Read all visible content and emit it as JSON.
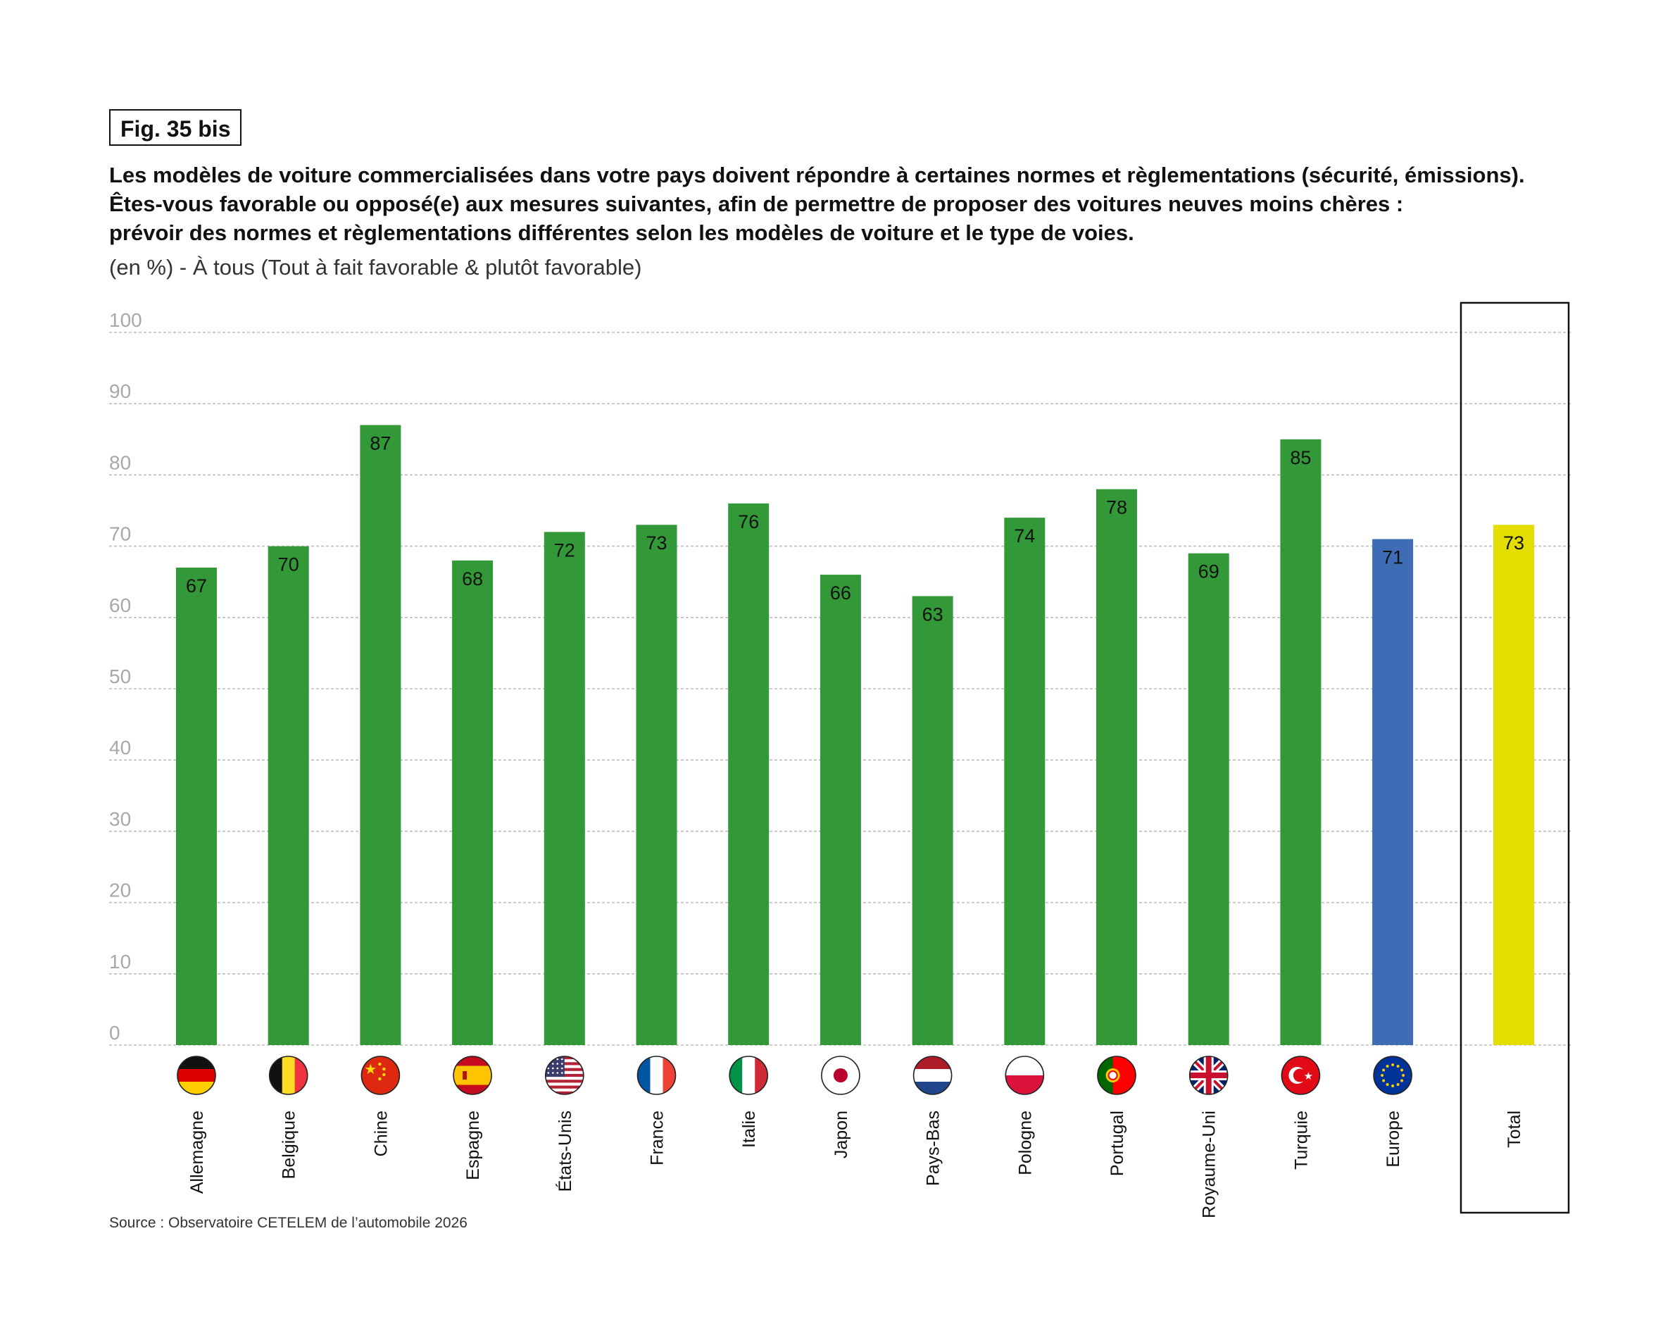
{
  "figure": {
    "label": "Fig. 35 bis",
    "title_lines": [
      "Les modèles de voiture commercialisées dans votre pays doivent répondre à certaines normes et règlementations (sécurité, émissions).",
      "Êtes-vous favorable ou opposé(e) aux mesures suivantes, afin de permettre de proposer des voitures neuves moins chères :",
      "prévoir des normes et règlementations différentes selon les modèles de voiture et le type de voies."
    ],
    "subtitle": "(en %) - À tous (Tout à fait favorable & plutôt favorable)",
    "source": "Source : Observatoire CETELEM de l’automobile 2026"
  },
  "colors": {
    "country": "#339938",
    "europe": "#3f6db5",
    "total": "#e4de00",
    "grid": "#bdbdbd",
    "tick_label": "#a8a8a8"
  },
  "chart_data": {
    "type": "bar",
    "title": "Les modèles de voiture commercialisées dans votre pays doivent répondre à certaines normes et règlementations (sécurité, émissions). Êtes-vous favorable ou opposé(e) aux mesures suivantes, afin de permettre de proposer des voitures neuves moins chères : prévoir des normes et règlementations différentes selon les modèles de voiture et le type de voies.",
    "xlabel": "",
    "ylabel": "%",
    "ylim": [
      0,
      100
    ],
    "yticks": [
      0,
      10,
      20,
      30,
      40,
      50,
      60,
      70,
      80,
      90,
      100
    ],
    "grid": true,
    "categories": [
      "Allemagne",
      "Belgique",
      "Chine",
      "Espagne",
      "États-Unis",
      "France",
      "Italie",
      "Japon",
      "Pays-Bas",
      "Pologne",
      "Portugal",
      "Royaume-Uni",
      "Turquie",
      "Europe",
      "Total"
    ],
    "flags": [
      "germany-flag-icon",
      "belgium-flag-icon",
      "china-flag-icon",
      "spain-flag-icon",
      "usa-flag-icon",
      "france-flag-icon",
      "italy-flag-icon",
      "japan-flag-icon",
      "netherlands-flag-icon",
      "poland-flag-icon",
      "portugal-flag-icon",
      "uk-flag-icon",
      "turkey-flag-icon",
      "eu-flag-icon",
      ""
    ],
    "values": [
      67,
      70,
      87,
      68,
      72,
      73,
      76,
      66,
      63,
      74,
      78,
      69,
      85,
      71,
      73
    ],
    "bar_kind": [
      "country",
      "country",
      "country",
      "country",
      "country",
      "country",
      "country",
      "country",
      "country",
      "country",
      "country",
      "country",
      "country",
      "europe",
      "total"
    ]
  }
}
